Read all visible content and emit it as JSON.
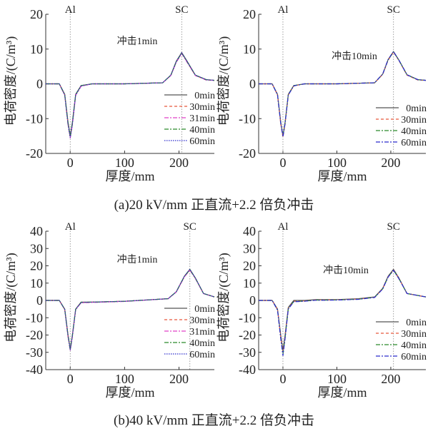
{
  "captions": [
    "(a)20 kV/mm 正直流+2.2 倍负冲击",
    "(b)40 kV/mm 正直流+2.2 倍负冲击"
  ],
  "chart_data": [
    {
      "type": "line",
      "title": "",
      "xlabel": "厚度/mm",
      "ylabel": "电荷密度/(C/m³)",
      "annotation": "冲击1min",
      "markers": [
        {
          "label": "Al",
          "x": 0
        },
        {
          "label": "SC",
          "x": 205
        }
      ],
      "xlim": [
        -45,
        265
      ],
      "ylim": [
        -20,
        20
      ],
      "xticks": [
        0,
        100,
        200
      ],
      "yticks": [
        -20,
        -10,
        0,
        10,
        20
      ],
      "series": [
        {
          "name": "0min",
          "color": "#555555",
          "dash": "",
          "x": [
            -45,
            -20,
            -10,
            -4,
            0,
            4,
            10,
            20,
            40,
            100,
            170,
            185,
            195,
            205,
            215,
            230,
            250,
            265
          ],
          "y": [
            0,
            0,
            -3,
            -11,
            -15,
            -11,
            -3,
            -0.5,
            0,
            0,
            0.3,
            2.5,
            6.5,
            9,
            6.5,
            2.5,
            1.2,
            1
          ]
        },
        {
          "name": "30min",
          "color": "#e8573c",
          "dash": "4,3",
          "x": [
            -45,
            -20,
            -10,
            -4,
            0,
            4,
            10,
            20,
            40,
            100,
            170,
            185,
            195,
            205,
            215,
            230,
            250,
            265
          ],
          "y": [
            0,
            0,
            -3.2,
            -11.5,
            -15.4,
            -11.5,
            -3.2,
            -0.6,
            0,
            0,
            0.3,
            2.4,
            6.3,
            8.8,
            6.3,
            2.4,
            1.1,
            1
          ]
        },
        {
          "name": "31min",
          "color": "#e040c8",
          "dash": "6,2,2,2",
          "x": [
            -45,
            -20,
            -10,
            -4,
            0,
            4,
            10,
            20,
            40,
            100,
            170,
            185,
            195,
            205,
            215,
            230,
            250,
            265
          ],
          "y": [
            0,
            0,
            -3.3,
            -11.8,
            -15.6,
            -11.8,
            -3.3,
            -0.7,
            0,
            0,
            0.3,
            2.4,
            6.2,
            8.7,
            6.2,
            2.4,
            1.1,
            1
          ]
        },
        {
          "name": "40min",
          "color": "#2a8a2a",
          "dash": "6,2,2,2",
          "x": [
            -45,
            -20,
            -10,
            -4,
            0,
            4,
            10,
            20,
            40,
            100,
            170,
            185,
            195,
            205,
            215,
            230,
            250,
            265
          ],
          "y": [
            0,
            0,
            -3.1,
            -11.3,
            -15.2,
            -11.3,
            -3.1,
            -0.5,
            0,
            0,
            0.3,
            2.5,
            6.4,
            8.9,
            6.4,
            2.5,
            1.2,
            1
          ]
        },
        {
          "name": "60min",
          "color": "#2a2acc",
          "dash": "1.5,1.5",
          "x": [
            -45,
            -20,
            -10,
            -4,
            0,
            4,
            10,
            20,
            40,
            100,
            170,
            185,
            195,
            205,
            215,
            230,
            250,
            265
          ],
          "y": [
            0,
            0,
            -3.2,
            -11.6,
            -15.5,
            -11.6,
            -3.2,
            -0.6,
            0,
            0,
            0.3,
            2.5,
            6.4,
            8.9,
            6.4,
            2.5,
            1.2,
            1
          ]
        }
      ]
    },
    {
      "type": "line",
      "title": "",
      "xlabel": "厚度/mm",
      "ylabel": "电荷密度/(C/m³)",
      "annotation": "冲击10min",
      "markers": [
        {
          "label": "Al",
          "x": 0
        },
        {
          "label": "SC",
          "x": 205
        }
      ],
      "xlim": [
        -45,
        265
      ],
      "ylim": [
        -20,
        20
      ],
      "xticks": [
        0,
        100,
        200
      ],
      "yticks": [
        -20,
        -10,
        0,
        10,
        20
      ],
      "series": [
        {
          "name": "0min",
          "color": "#555555",
          "dash": "",
          "x": [
            -45,
            -20,
            -10,
            -4,
            0,
            4,
            10,
            20,
            40,
            100,
            170,
            185,
            195,
            205,
            215,
            230,
            250,
            265
          ],
          "y": [
            0,
            0,
            -3,
            -11,
            -15,
            -11,
            -3,
            -0.5,
            0,
            0,
            0.3,
            2.8,
            7,
            9.3,
            6.8,
            2.6,
            1.2,
            1
          ]
        },
        {
          "name": "30min",
          "color": "#e8573c",
          "dash": "4,3",
          "x": [
            -45,
            -20,
            -10,
            -4,
            0,
            4,
            10,
            20,
            40,
            100,
            170,
            185,
            195,
            205,
            215,
            230,
            250,
            265
          ],
          "y": [
            0,
            0,
            -3.2,
            -11.5,
            -15.3,
            -11.5,
            -3.2,
            -0.6,
            0,
            0,
            0.3,
            2.7,
            6.8,
            9.1,
            6.7,
            2.5,
            1.1,
            1
          ]
        },
        {
          "name": "40min",
          "color": "#2a8a2a",
          "dash": "6,2,2,2",
          "x": [
            -45,
            -20,
            -10,
            -4,
            0,
            4,
            10,
            20,
            40,
            100,
            170,
            185,
            195,
            205,
            215,
            230,
            250,
            265
          ],
          "y": [
            0,
            0,
            -3.1,
            -11.2,
            -15.1,
            -11.2,
            -3.1,
            -0.5,
            0,
            0,
            0.3,
            2.8,
            6.9,
            9.2,
            6.8,
            2.6,
            1.2,
            1
          ]
        },
        {
          "name": "60min",
          "color": "#2a2acc",
          "dash": "6,2,2,2",
          "x": [
            -45,
            -20,
            -10,
            -4,
            0,
            4,
            10,
            20,
            40,
            100,
            170,
            185,
            195,
            205,
            215,
            230,
            250,
            265
          ],
          "y": [
            0,
            0,
            -3.2,
            -11.4,
            -15.2,
            -11.4,
            -3.2,
            -0.6,
            0,
            0,
            0.3,
            2.8,
            7,
            9.3,
            6.8,
            2.6,
            1.2,
            1
          ]
        }
      ]
    },
    {
      "type": "line",
      "title": "",
      "xlabel": "厚度/mm",
      "ylabel": "电荷密度/(C/m³)",
      "annotation": "冲击1min",
      "markers": [
        {
          "label": "Al",
          "x": 0
        },
        {
          "label": "SC",
          "x": 220
        }
      ],
      "xlim": [
        -45,
        265
      ],
      "ylim": [
        -40,
        40
      ],
      "xticks": [
        0,
        100,
        200
      ],
      "yticks": [
        -40,
        -30,
        -20,
        -10,
        0,
        10,
        20,
        30,
        40
      ],
      "series": [
        {
          "name": "0min",
          "color": "#555555",
          "dash": "",
          "x": [
            -45,
            -20,
            -10,
            -4,
            0,
            4,
            10,
            20,
            40,
            100,
            180,
            195,
            210,
            220,
            230,
            245,
            265
          ],
          "y": [
            0,
            0,
            -5,
            -20,
            -28,
            -20,
            -5,
            -1,
            -1,
            -0.5,
            1,
            5,
            14,
            18,
            13,
            4,
            2
          ]
        },
        {
          "name": "30min",
          "color": "#e8573c",
          "dash": "4,3",
          "x": [
            -45,
            -20,
            -10,
            -4,
            0,
            4,
            10,
            20,
            40,
            100,
            180,
            195,
            210,
            220,
            230,
            245,
            265
          ],
          "y": [
            0,
            0,
            -5.2,
            -20.5,
            -28.5,
            -20.5,
            -5.2,
            -1.2,
            -1,
            -0.5,
            1,
            5,
            13.8,
            17.7,
            12.8,
            4,
            2
          ]
        },
        {
          "name": "31min",
          "color": "#e040c8",
          "dash": "6,2,2,2",
          "x": [
            -45,
            -20,
            -10,
            -4,
            0,
            4,
            10,
            20,
            40,
            100,
            180,
            195,
            210,
            220,
            230,
            245,
            265
          ],
          "y": [
            0,
            0,
            -5.3,
            -21,
            -29,
            -21,
            -5.3,
            -1.4,
            -1.2,
            -0.6,
            1,
            4.8,
            13.6,
            17.5,
            12.6,
            3.9,
            2
          ]
        },
        {
          "name": "40min",
          "color": "#2a8a2a",
          "dash": "6,2,2,2",
          "x": [
            -45,
            -20,
            -10,
            -4,
            0,
            4,
            10,
            20,
            40,
            100,
            180,
            195,
            210,
            220,
            230,
            245,
            265
          ],
          "y": [
            0,
            0,
            -5.1,
            -20.3,
            -28.3,
            -20.3,
            -5.1,
            -1.1,
            -1,
            -0.5,
            1,
            5,
            13.9,
            17.8,
            12.9,
            4,
            2
          ]
        },
        {
          "name": "60min",
          "color": "#2a2acc",
          "dash": "1.5,1.5",
          "x": [
            -45,
            -20,
            -10,
            -4,
            0,
            4,
            10,
            20,
            40,
            100,
            180,
            195,
            210,
            220,
            230,
            245,
            265
          ],
          "y": [
            0,
            0,
            -5.2,
            -20.6,
            -28.6,
            -20.6,
            -5.2,
            -1.2,
            -1,
            -0.5,
            1,
            5,
            14,
            18,
            13,
            4,
            2
          ]
        }
      ]
    },
    {
      "type": "line",
      "title": "",
      "xlabel": "厚度/mm",
      "ylabel": "电荷密度/(C/m³)",
      "annotation": "冲击10min",
      "markers": [
        {
          "label": "Al",
          "x": 0
        },
        {
          "label": "SC",
          "x": 205
        }
      ],
      "xlim": [
        -45,
        265
      ],
      "ylim": [
        -40,
        40
      ],
      "xticks": [
        0,
        100,
        200
      ],
      "yticks": [
        -40,
        -30,
        -20,
        -10,
        0,
        10,
        20,
        30,
        40
      ],
      "series": [
        {
          "name": "0min",
          "color": "#555555",
          "dash": "",
          "x": [
            -45,
            -20,
            -10,
            -4,
            0,
            4,
            10,
            20,
            40,
            60,
            80,
            100,
            140,
            170,
            185,
            195,
            205,
            215,
            230,
            265
          ],
          "y": [
            0,
            0,
            -5,
            -20,
            -29,
            -20,
            -4,
            0,
            0,
            0.5,
            0.5,
            0.5,
            1,
            2,
            7,
            14,
            18,
            13,
            4,
            2
          ]
        },
        {
          "name": "30min",
          "color": "#e8573c",
          "dash": "4,3",
          "x": [
            -45,
            -20,
            -10,
            -4,
            0,
            4,
            10,
            20,
            40,
            60,
            80,
            100,
            140,
            170,
            185,
            195,
            205,
            215,
            230,
            265
          ],
          "y": [
            0,
            0,
            -5.3,
            -21,
            -30,
            -21,
            -4.5,
            -0.5,
            -0.3,
            0.3,
            0.3,
            0.4,
            0.8,
            1.8,
            6.8,
            13.7,
            17.6,
            12.7,
            4,
            2
          ]
        },
        {
          "name": "40min",
          "color": "#2a8a2a",
          "dash": "6,2,2,2",
          "x": [
            -45,
            -20,
            -10,
            -4,
            0,
            4,
            10,
            20,
            40,
            60,
            80,
            100,
            140,
            170,
            185,
            195,
            205,
            215,
            230,
            265
          ],
          "y": [
            0,
            0,
            -5.5,
            -21.5,
            -31,
            -21.5,
            -4.8,
            -0.6,
            -0.4,
            0.2,
            0.2,
            0.3,
            0.7,
            1.8,
            6.7,
            13.6,
            17.5,
            12.6,
            4,
            2
          ]
        },
        {
          "name": "60min",
          "color": "#2a2acc",
          "dash": "6,2,2,2",
          "x": [
            -45,
            -20,
            -10,
            -4,
            0,
            4,
            10,
            20,
            40,
            60,
            80,
            100,
            140,
            170,
            185,
            195,
            205,
            215,
            230,
            265
          ],
          "y": [
            0,
            0,
            -5.6,
            -22,
            -32,
            -22,
            -5,
            -0.8,
            -0.5,
            0.1,
            0.1,
            0.2,
            0.6,
            1.7,
            6.6,
            13.5,
            17.4,
            12.5,
            4,
            2
          ]
        }
      ]
    }
  ]
}
